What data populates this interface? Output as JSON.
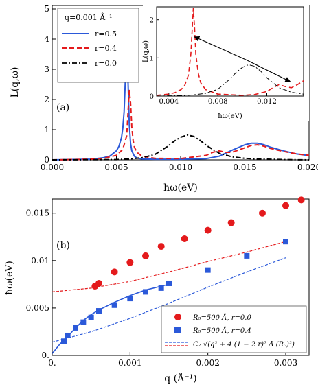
{
  "chart_data": [
    {
      "type": "line",
      "panel_label": "(a)",
      "xlabel": "ħω(eV)",
      "ylabel": "L(q,ω)",
      "xlim": [
        0,
        0.02
      ],
      "ylim": [
        0,
        5
      ],
      "xticks": [
        "0.000",
        "0.005",
        "0.010",
        "0.015",
        "0.020"
      ],
      "xtick_values": [
        0,
        0.005,
        0.01,
        0.015,
        0.02
      ],
      "yticks": [
        "0",
        "1",
        "2",
        "3",
        "4",
        "5"
      ],
      "ytick_values": [
        0,
        1,
        2,
        3,
        4,
        5
      ],
      "legend_title": "q=0.001 Å⁻¹",
      "legend_position": "top-left",
      "series": [
        {
          "name": "r=0.5",
          "color": "#2b59d9",
          "dash": "solid",
          "x": [
            0.0,
            0.003,
            0.004,
            0.0045,
            0.005,
            0.0052,
            0.0054,
            0.0055,
            0.0056,
            0.0057,
            0.0058,
            0.0059,
            0.006,
            0.0061,
            0.0062,
            0.0064,
            0.0066,
            0.007,
            0.008,
            0.01,
            0.012,
            0.013,
            0.014,
            0.015,
            0.0155,
            0.016,
            0.0165,
            0.017,
            0.018,
            0.019,
            0.02
          ],
          "y": [
            0.0,
            0.02,
            0.07,
            0.13,
            0.3,
            0.45,
            0.75,
            1.05,
            1.6,
            2.7,
            5.0,
            2.7,
            1.2,
            0.55,
            0.3,
            0.12,
            0.06,
            0.03,
            0.02,
            0.02,
            0.04,
            0.12,
            0.32,
            0.5,
            0.55,
            0.55,
            0.5,
            0.42,
            0.3,
            0.2,
            0.14
          ]
        },
        {
          "name": "r=0.4",
          "color": "#e41a1c",
          "dash": "dashed",
          "x": [
            0.0,
            0.003,
            0.004,
            0.005,
            0.0055,
            0.0058,
            0.006,
            0.0061,
            0.0062,
            0.0063,
            0.0064,
            0.0066,
            0.007,
            0.008,
            0.01,
            0.012,
            0.0125,
            0.013,
            0.0135,
            0.014,
            0.015,
            0.0155,
            0.016,
            0.0165,
            0.017,
            0.018,
            0.019,
            0.02
          ],
          "y": [
            0.0,
            0.02,
            0.05,
            0.15,
            0.35,
            0.8,
            2.3,
            1.9,
            1.1,
            0.65,
            0.42,
            0.25,
            0.12,
            0.05,
            0.04,
            0.15,
            0.25,
            0.3,
            0.25,
            0.25,
            0.4,
            0.48,
            0.5,
            0.45,
            0.38,
            0.28,
            0.2,
            0.15
          ]
        },
        {
          "name": "r=0.0",
          "color": "#000000",
          "dash": "dashdot",
          "x": [
            0.0,
            0.005,
            0.006,
            0.007,
            0.008,
            0.009,
            0.0095,
            0.01,
            0.0105,
            0.011,
            0.0115,
            0.012,
            0.013,
            0.014,
            0.015,
            0.016,
            0.017,
            0.018,
            0.02
          ],
          "y": [
            0.0,
            0.01,
            0.03,
            0.07,
            0.18,
            0.45,
            0.62,
            0.75,
            0.82,
            0.78,
            0.65,
            0.48,
            0.22,
            0.1,
            0.05,
            0.03,
            0.02,
            0.01,
            0.0
          ]
        }
      ],
      "inset": {
        "xlabel": "ħω(eV)",
        "ylabel": "L(q,ω)",
        "xlim": [
          0.003,
          0.015
        ],
        "ylim": [
          0,
          2.3
        ],
        "xticks": [
          "0.004",
          "0.008",
          "0.012"
        ],
        "xtick_values": [
          0.004,
          0.008,
          0.012
        ],
        "yticks": [
          "0",
          "1",
          "2"
        ],
        "ytick_values": [
          0,
          1,
          2
        ],
        "series": [
          {
            "name": "r=0.4",
            "color": "#e41a1c",
            "dash": "dashed",
            "x": [
              0.003,
              0.004,
              0.0045,
              0.005,
              0.0053,
              0.0056,
              0.0058,
              0.0059,
              0.006,
              0.0061,
              0.0062,
              0.0064,
              0.0066,
              0.007,
              0.008,
              0.01,
              0.011,
              0.012,
              0.0125,
              0.013,
              0.0135,
              0.014,
              0.0145,
              0.015
            ],
            "y": [
              0.02,
              0.05,
              0.09,
              0.17,
              0.28,
              0.55,
              1.1,
              1.7,
              2.3,
              1.8,
              1.1,
              0.6,
              0.35,
              0.17,
              0.05,
              0.02,
              0.04,
              0.12,
              0.22,
              0.3,
              0.25,
              0.22,
              0.3,
              0.4
            ]
          },
          {
            "name": "r=0.0",
            "color": "#000000",
            "dash": "dashdot",
            "x": [
              0.003,
              0.005,
              0.006,
              0.007,
              0.008,
              0.009,
              0.0095,
              0.01,
              0.0105,
              0.011,
              0.0115,
              0.012,
              0.013,
              0.014,
              0.015
            ],
            "y": [
              0.0,
              0.01,
              0.03,
              0.07,
              0.18,
              0.45,
              0.62,
              0.75,
              0.82,
              0.78,
              0.65,
              0.48,
              0.22,
              0.1,
              0.05
            ]
          }
        ],
        "arrows": [
          {
            "x1": 0.0103,
            "y1": 0.95,
            "x2": 0.0061,
            "y2": 1.55
          },
          {
            "x1": 0.0103,
            "y1": 0.95,
            "x2": 0.0139,
            "y2": 0.38
          }
        ]
      }
    },
    {
      "type": "scatter",
      "panel_label": "(b)",
      "xlabel": "q (Å⁻¹)",
      "ylabel": "ħω(eV)",
      "xlim": [
        0,
        0.0033
      ],
      "ylim": [
        0,
        0.0165
      ],
      "xticks": [
        "0.",
        "0.001",
        "0.002",
        "0.003"
      ],
      "xtick_values": [
        0,
        0.001,
        0.002,
        0.003
      ],
      "yticks": [
        "0.",
        "0.005",
        "0.01",
        "0.015"
      ],
      "ytick_values": [
        0,
        0.005,
        0.01,
        0.015
      ],
      "legend_position": "bottom-right",
      "series": [
        {
          "name": "R₀=500 Å, r=0.0",
          "marker": "circle",
          "color": "#e41a1c",
          "x": [
            0.00055,
            0.0006,
            0.0008,
            0.001,
            0.0012,
            0.0014,
            0.0017,
            0.002,
            0.0023,
            0.0027,
            0.003,
            0.0032
          ],
          "y": [
            0.0073,
            0.0076,
            0.0088,
            0.0098,
            0.0105,
            0.0115,
            0.0123,
            0.0132,
            0.014,
            0.015,
            0.0158,
            0.0164
          ]
        },
        {
          "name": "R₀=500 Å, r=0.4",
          "marker": "square",
          "color": "#2b59d9",
          "x": [
            0.00015,
            0.0002,
            0.0003,
            0.0004,
            0.0005,
            0.0006,
            0.0008,
            0.001,
            0.0012,
            0.0014,
            0.0015,
            0.002,
            0.0025,
            0.003
          ],
          "y": [
            0.0015,
            0.0021,
            0.0029,
            0.0035,
            0.004,
            0.0047,
            0.0053,
            0.006,
            0.0067,
            0.0071,
            0.0076,
            0.009,
            0.0105,
            0.012
          ]
        }
      ],
      "lines": [
        {
          "name": "fit r=0.4",
          "color": "#2b59d9",
          "dash": "solid",
          "x": [
            0.0,
            0.0001,
            0.0002,
            0.0003,
            0.0004,
            0.0005,
            0.0006,
            0.0008,
            0.001,
            0.0012,
            0.0014,
            0.0015
          ],
          "y": [
            0.0002,
            0.0012,
            0.002,
            0.0029,
            0.0037,
            0.0043,
            0.0048,
            0.0056,
            0.0063,
            0.0069,
            0.0073,
            0.0075
          ]
        },
        {
          "name": "C2 blue",
          "color": "#2b59d9",
          "dash": "dashed",
          "x": [
            0.0,
            0.0005,
            0.001,
            0.0015,
            0.002,
            0.0025,
            0.003
          ],
          "y": [
            0.0014,
            0.0025,
            0.0039,
            0.0055,
            0.0072,
            0.0088,
            0.0103
          ]
        },
        {
          "name": "C2 red",
          "color": "#e41a1c",
          "dash": "dashed",
          "x": [
            0.0,
            0.0005,
            0.001,
            0.0015,
            0.002,
            0.0025,
            0.003
          ],
          "y": [
            0.0067,
            0.0071,
            0.0078,
            0.0088,
            0.0099,
            0.0109,
            0.012
          ]
        }
      ],
      "legend_formula": "C₂ √(q² + 4 (1 − 2 r)² Δ̃ (R₀)²)"
    }
  ]
}
